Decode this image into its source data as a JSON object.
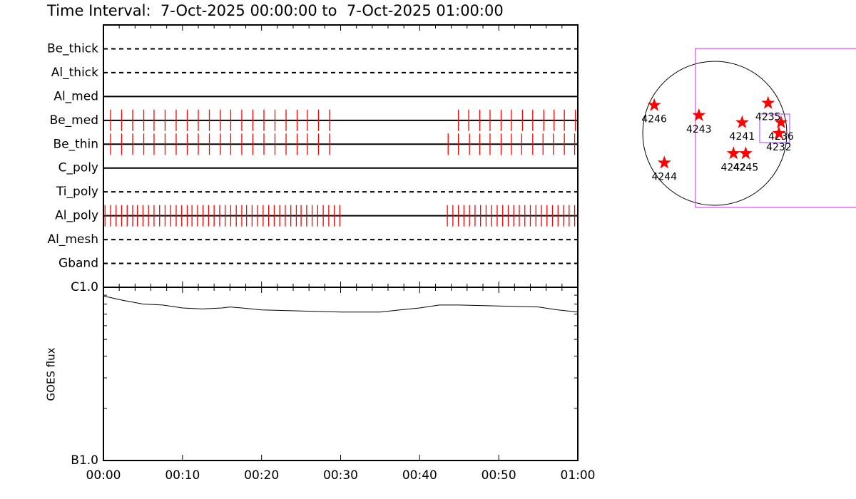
{
  "chart_data": [
    {
      "type": "timeline",
      "title": "Time Interval:  7-Oct-2025 00:00:00 to  7-Oct-2025 01:00:00",
      "color": "#ff0000",
      "xlim": [
        0,
        60
      ],
      "rows": [
        {
          "name": "Be_thick",
          "style": "dashed",
          "times": []
        },
        {
          "name": "Al_thick",
          "style": "dashed",
          "times": []
        },
        {
          "name": "Al_med",
          "style": "solid",
          "times": []
        },
        {
          "name": "Be_med",
          "style": "solid",
          "times": [
            0.9,
            2.3,
            3.7,
            5.1,
            6.4,
            7.8,
            9.2,
            10.6,
            12.0,
            13.4,
            14.8,
            16.1,
            17.5,
            18.9,
            20.3,
            21.7,
            23.1,
            24.5,
            25.8,
            27.2,
            28.6,
            44.9,
            46.2,
            47.6,
            48.9,
            50.3,
            51.6,
            53.0,
            54.3,
            55.7,
            57.0,
            58.3,
            59.7
          ]
        },
        {
          "name": "Be_thin",
          "style": "solid",
          "times": [
            0.9,
            2.3,
            3.7,
            5.1,
            6.4,
            7.8,
            9.2,
            10.6,
            12.0,
            13.4,
            14.8,
            16.1,
            17.5,
            18.9,
            20.3,
            21.7,
            23.1,
            24.5,
            25.8,
            27.2,
            28.6,
            43.6,
            44.9,
            46.3,
            47.6,
            48.9,
            50.3,
            51.6,
            52.9,
            54.3,
            55.6,
            56.9,
            58.3,
            59.6
          ]
        },
        {
          "name": "C_poly",
          "style": "solid",
          "times": []
        },
        {
          "name": "Ti_poly",
          "style": "dashed",
          "times": []
        },
        {
          "name": "Al_poly",
          "style": "solid",
          "times": [
            0.2,
            0.9,
            1.6,
            2.3,
            3.0,
            3.7,
            4.3,
            5.0,
            5.7,
            6.4,
            7.1,
            7.8,
            8.5,
            9.2,
            9.9,
            10.6,
            11.2,
            11.9,
            12.6,
            13.3,
            14.0,
            14.7,
            15.4,
            16.1,
            16.8,
            17.5,
            18.1,
            18.8,
            19.5,
            20.2,
            20.9,
            21.6,
            22.3,
            23.0,
            23.7,
            24.4,
            25.0,
            25.7,
            26.4,
            27.1,
            27.8,
            28.5,
            29.2,
            29.9,
            43.5,
            44.2,
            44.9,
            45.6,
            46.3,
            47.0,
            47.7,
            48.4,
            49.1,
            49.8,
            50.5,
            51.2,
            51.9,
            52.6,
            53.3,
            54.0,
            54.7,
            55.4,
            56.1,
            56.8,
            57.5,
            58.2,
            58.9,
            59.6
          ]
        },
        {
          "name": "Al_mesh",
          "style": "dashed",
          "times": []
        },
        {
          "name": "Gband",
          "style": "dashed",
          "times": []
        }
      ]
    },
    {
      "type": "line",
      "ylabel": "GOES flux",
      "color": "#000000",
      "log_scale": true,
      "xlim": [
        0,
        60
      ],
      "xticks": [
        {
          "value": 0,
          "label": "00:00"
        },
        {
          "value": 10,
          "label": "00:10"
        },
        {
          "value": 20,
          "label": "00:20"
        },
        {
          "value": 30,
          "label": "00:30"
        },
        {
          "value": 40,
          "label": "00:40"
        },
        {
          "value": 50,
          "label": "00:50"
        },
        {
          "value": 60,
          "label": "01:00"
        }
      ],
      "ylim": [
        1e-07,
        1e-06
      ],
      "yticks": [
        {
          "value": 1e-06,
          "label": "C1.0"
        },
        {
          "value": 1e-07,
          "label": "B1.0"
        }
      ],
      "x": [
        0,
        2.5,
        5,
        7.5,
        10,
        12.5,
        15,
        16,
        17.5,
        20,
        25,
        30,
        35,
        37.5,
        40,
        42.5,
        45,
        50,
        55,
        57.5,
        60
      ],
      "values": [
        8.9e-07,
        8.4e-07,
        8e-07,
        7.9e-07,
        7.6e-07,
        7.5e-07,
        7.6e-07,
        7.7e-07,
        7.6e-07,
        7.4e-07,
        7.3e-07,
        7.2e-07,
        7.2e-07,
        7.4e-07,
        7.6e-07,
        7.9e-07,
        7.9e-07,
        7.8e-07,
        7.7e-07,
        7.4e-07,
        7.2e-07
      ]
    },
    {
      "type": "scatter",
      "color": "#ff0000",
      "labels": [
        "4246",
        "4243",
        "4241",
        "4235",
        "4236",
        "4232",
        "4242",
        "4245",
        "4244"
      ],
      "x": [
        -0.84,
        -0.22,
        0.38,
        0.74,
        0.92,
        0.89,
        0.26,
        0.43,
        -0.7
      ],
      "y": [
        0.39,
        0.25,
        0.15,
        0.42,
        0.15,
        0.0,
        -0.28,
        -0.28,
        -0.41
      ]
    }
  ]
}
